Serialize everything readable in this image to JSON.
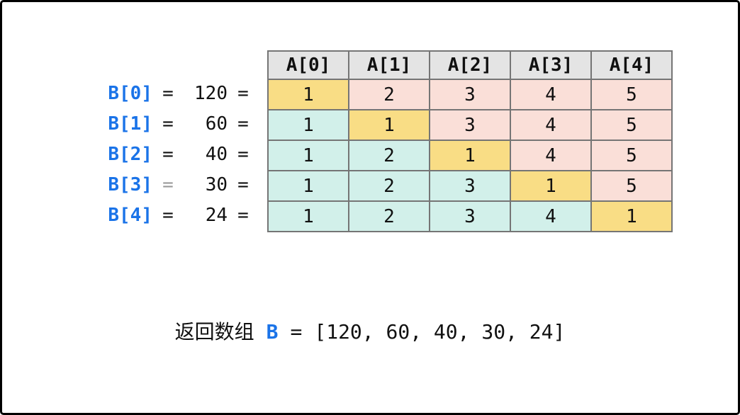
{
  "colors": {
    "blue": "#1a73e8",
    "yellow": "#f9dd85",
    "teal": "#d2f0ea",
    "pink": "#fadfd8",
    "header_gray": "#e4e4e4",
    "grid_border": "#757575",
    "muted_eq": "#9a9a9a"
  },
  "table": {
    "column_headers": [
      "A[0]",
      "A[1]",
      "A[2]",
      "A[3]",
      "A[4]"
    ],
    "rows": [
      {
        "label": "B[0]",
        "eq1": "=",
        "value": "120",
        "eq2": "=",
        "cells": [
          {
            "v": "1",
            "c": "yellow"
          },
          {
            "v": "2",
            "c": "pink"
          },
          {
            "v": "3",
            "c": "pink"
          },
          {
            "v": "4",
            "c": "pink"
          },
          {
            "v": "5",
            "c": "pink"
          }
        ]
      },
      {
        "label": "B[1]",
        "eq1": "=",
        "value": "60",
        "eq2": "=",
        "cells": [
          {
            "v": "1",
            "c": "teal"
          },
          {
            "v": "1",
            "c": "yellow"
          },
          {
            "v": "3",
            "c": "pink"
          },
          {
            "v": "4",
            "c": "pink"
          },
          {
            "v": "5",
            "c": "pink"
          }
        ]
      },
      {
        "label": "B[2]",
        "eq1": "=",
        "value": "40",
        "eq2": "=",
        "cells": [
          {
            "v": "1",
            "c": "teal"
          },
          {
            "v": "2",
            "c": "teal"
          },
          {
            "v": "1",
            "c": "yellow"
          },
          {
            "v": "4",
            "c": "pink"
          },
          {
            "v": "5",
            "c": "pink"
          }
        ]
      },
      {
        "label": "B[3]",
        "eq1": "=",
        "eq1_color": "#9a9a9a",
        "value": "30",
        "eq2": "=",
        "cells": [
          {
            "v": "1",
            "c": "teal"
          },
          {
            "v": "2",
            "c": "teal"
          },
          {
            "v": "3",
            "c": "teal"
          },
          {
            "v": "1",
            "c": "yellow"
          },
          {
            "v": "5",
            "c": "pink"
          }
        ]
      },
      {
        "label": "B[4]",
        "eq1": "=",
        "value": "24",
        "eq2": "=",
        "cells": [
          {
            "v": "1",
            "c": "teal"
          },
          {
            "v": "2",
            "c": "teal"
          },
          {
            "v": "3",
            "c": "teal"
          },
          {
            "v": "4",
            "c": "teal"
          },
          {
            "v": "1",
            "c": "yellow"
          }
        ]
      }
    ]
  },
  "caption": {
    "prefix": "返回数组",
    "var": "B",
    "eq": "=",
    "array": "[120, 60, 40, 30, 24]"
  }
}
